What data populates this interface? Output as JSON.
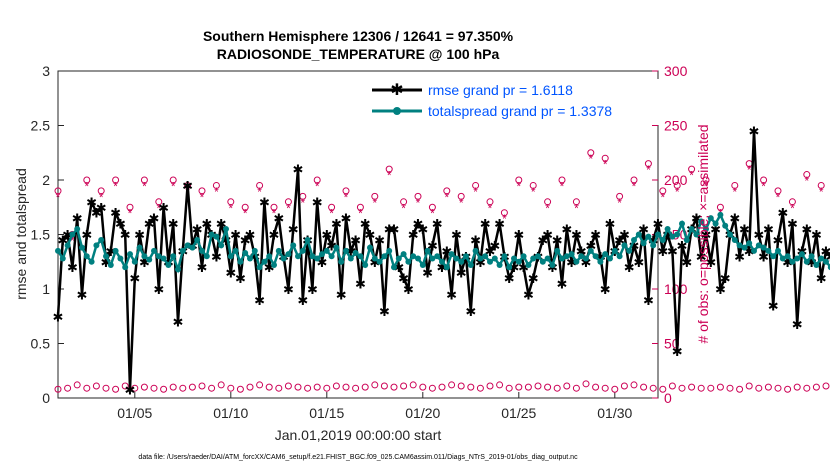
{
  "chart_data": {
    "type": "line",
    "title_line1": "Southern Hemisphere 12306 / 12641 = 97.350%",
    "title_line2": "RADIOSONDE_TEMPERATURE @ 100 hPa",
    "xlabel": "Jan.01,2019 00:00:00 start",
    "ylabel_left": "rmse and totalspread",
    "ylabel_right": "# of obs: o=possible; ×=assimilated",
    "footer": "data file: /Users/raeder/DAI/ATM_forcXX/CAM6_setup/f.e21.FHIST_BGC.f09_025.CAM6assim.011/Diags_NTrS_2019-01/obs_diag_output.nc",
    "xlim": [
      1,
      32.25
    ],
    "ylim_left": [
      0,
      3
    ],
    "ylim_right": [
      0,
      300
    ],
    "x_ticks": [
      {
        "x": 5,
        "label": "01/05"
      },
      {
        "x": 10,
        "label": "01/10"
      },
      {
        "x": 15,
        "label": "01/15"
      },
      {
        "x": 20,
        "label": "01/20"
      },
      {
        "x": 25,
        "label": "01/25"
      },
      {
        "x": 30,
        "label": "01/30"
      }
    ],
    "y_ticks_left": [
      "0",
      "0.5",
      "1",
      "1.5",
      "2",
      "2.5",
      "3"
    ],
    "y_ticks_right": [
      "0",
      "50",
      "100",
      "150",
      "200",
      "250",
      "300"
    ],
    "legend": {
      "rmse": "rmse grand pr = 1.6118",
      "spread": "totalspread grand pr = 1.3378"
    },
    "colors": {
      "rmse": "#000000",
      "spread": "#008080",
      "counts": "#cc0055"
    },
    "step": 0.25,
    "x_start": 1.0,
    "series": [
      {
        "name": "rmse",
        "values": [
          0.75,
          1.45,
          1.5,
          1.2,
          1.65,
          0.95,
          1.5,
          1.8,
          1.7,
          1.75,
          1.25,
          1.35,
          1.7,
          1.6,
          1.5,
          0.08,
          1.1,
          1.5,
          1.25,
          1.6,
          1.65,
          1.0,
          1.75,
          1.25,
          1.6,
          0.7,
          1.35,
          1.95,
          1.4,
          1.55,
          1.2,
          1.6,
          1.5,
          1.3,
          1.6,
          1.45,
          1.15,
          1.5,
          1.1,
          1.45,
          1.5,
          1.3,
          0.9,
          1.8,
          1.2,
          1.5,
          1.65,
          1.3,
          1.0,
          1.55,
          2.1,
          0.9,
          1.45,
          1.0,
          1.8,
          1.25,
          1.5,
          1.4,
          1.6,
          0.95,
          1.65,
          1.35,
          1.45,
          1.05,
          1.6,
          1.5,
          1.25,
          1.45,
          0.8,
          1.55,
          1.55,
          1.2,
          1.1,
          1.0,
          1.5,
          1.6,
          1.55,
          1.15,
          1.4,
          1.6,
          1.2,
          1.35,
          0.95,
          1.5,
          1.15,
          1.3,
          0.8,
          1.45,
          1.25,
          1.6,
          1.35,
          1.4,
          1.6,
          1.3,
          1.1,
          1.2,
          1.5,
          1.2,
          0.95,
          1.1,
          1.3,
          1.45,
          1.5,
          1.2,
          1.45,
          1.05,
          1.55,
          1.25,
          1.5,
          1.35,
          1.25,
          1.4,
          1.5,
          1.3,
          1.0,
          1.6,
          1.35,
          1.45,
          1.5,
          1.2,
          1.4,
          1.25,
          1.55,
          0.9,
          1.45,
          1.6,
          1.35,
          1.5,
          1.35,
          0.43,
          1.4,
          1.25,
          1.55,
          1.65,
          1.3,
          1.5,
          1.25,
          1.55,
          1.0,
          1.1,
          1.5,
          1.65,
          1.3,
          1.55,
          1.35,
          2.45,
          1.5,
          1.3,
          1.55,
          0.85,
          1.45,
          1.7,
          1.25,
          1.6,
          0.68,
          1.35,
          1.55,
          1.25,
          1.5,
          1.1,
          1.35,
          1.3,
          1.55,
          0.9,
          1.45,
          1.15,
          1.4,
          0.85,
          1.5,
          1.1,
          1.35,
          1.4,
          0.95,
          1.25,
          1.45,
          1.5,
          1.6,
          1.58,
          1.65,
          1.8
        ]
      },
      {
        "name": "totalspread",
        "values": [
          1.35,
          1.28,
          1.4,
          1.5,
          1.55,
          1.38,
          1.3,
          1.25,
          1.4,
          1.45,
          1.3,
          1.22,
          1.35,
          1.28,
          1.2,
          1.32,
          1.25,
          1.38,
          1.3,
          1.27,
          1.35,
          1.3,
          1.28,
          1.22,
          1.3,
          1.18,
          1.35,
          1.4,
          1.38,
          1.45,
          1.35,
          1.3,
          1.5,
          1.48,
          1.4,
          1.55,
          1.3,
          1.35,
          1.25,
          1.33,
          1.28,
          1.35,
          1.2,
          1.25,
          1.3,
          1.22,
          1.35,
          1.28,
          1.32,
          1.4,
          1.3,
          1.35,
          1.45,
          1.3,
          1.28,
          1.32,
          1.35,
          1.3,
          1.38,
          1.25,
          1.35,
          1.28,
          1.33,
          1.3,
          1.22,
          1.38,
          1.28,
          1.25,
          1.3,
          1.35,
          1.2,
          1.28,
          1.32,
          1.25,
          1.3,
          1.28,
          1.22,
          1.35,
          1.28,
          1.3,
          1.25,
          1.2,
          1.32,
          1.28,
          1.25,
          1.3,
          1.22,
          1.35,
          1.28,
          1.3,
          1.25,
          1.28,
          1.22,
          1.3,
          1.2,
          1.28,
          1.25,
          1.3,
          1.22,
          1.28,
          1.3,
          1.25,
          1.28,
          1.22,
          1.35,
          1.28,
          1.3,
          1.32,
          1.25,
          1.3,
          1.28,
          1.35,
          1.3,
          1.25,
          1.32,
          1.28,
          1.35,
          1.3,
          1.4,
          1.35,
          1.45,
          1.5,
          1.42,
          1.48,
          1.4,
          1.5,
          1.45,
          1.55,
          1.48,
          1.5,
          1.6,
          1.45,
          1.55,
          1.5,
          1.62,
          1.55,
          1.65,
          1.6,
          1.68,
          1.58,
          1.5,
          1.45,
          1.4,
          1.38,
          1.42,
          1.35,
          1.4,
          1.38,
          1.35,
          1.3,
          1.35,
          1.28,
          1.3,
          1.25,
          1.28,
          1.32,
          1.25,
          1.3,
          1.22,
          1.28,
          1.25,
          1.2,
          1.28,
          1.22,
          1.25,
          1.2,
          1.28,
          1.15,
          1.25,
          1.22,
          1.2,
          1.1,
          1.25,
          1.28,
          1.25,
          1.2
        ]
      },
      {
        "name": "possible",
        "values": [
          190,
          185,
          160,
          150,
          165,
          160,
          200,
          180,
          185,
          190,
          175,
          180,
          200,
          190,
          205,
          175,
          190,
          195,
          200,
          170,
          165,
          180,
          190,
          180,
          200,
          175,
          185,
          195,
          215,
          200,
          190,
          175,
          190,
          195,
          210,
          170,
          180,
          185,
          195,
          175,
          180,
          200,
          195,
          210,
          185,
          175,
          180,
          210,
          180,
          190,
          205,
          185,
          175,
          195,
          200,
          180,
          190,
          175,
          185,
          195,
          190,
          200,
          185,
          175,
          180,
          205,
          185,
          190,
          215,
          210,
          185,
          195,
          180,
          190,
          175,
          185,
          190,
          205,
          175,
          195,
          180,
          190,
          185,
          195,
          185,
          175,
          170,
          195,
          185,
          175,
          180,
          200,
          190,
          170,
          175,
          185,
          200,
          180,
          190,
          195,
          210,
          175,
          180,
          185,
          190,
          200,
          175,
          190,
          180,
          185,
          195,
          225,
          200,
          215,
          220,
          175,
          195,
          185,
          180,
          210,
          200,
          185,
          195,
          215,
          205,
          200,
          190,
          240,
          185,
          195,
          200,
          215,
          210,
          190,
          180,
          200,
          210,
          195,
          175,
          185,
          200,
          195,
          190,
          180,
          215,
          185,
          195,
          200,
          175,
          205,
          190,
          185,
          200,
          180,
          195,
          185,
          205,
          175,
          210,
          195,
          185,
          215,
          190,
          195,
          180,
          200,
          185,
          190,
          250,
          210,
          200,
          185,
          195,
          215,
          195,
          190
        ]
      },
      {
        "name": "assimilated",
        "values": [
          185,
          180,
          155,
          145,
          160,
          155,
          195,
          175,
          180,
          185,
          170,
          175,
          195,
          185,
          200,
          170,
          185,
          190,
          195,
          165,
          160,
          175,
          185,
          175,
          195,
          170,
          180,
          190,
          210,
          195,
          185,
          170,
          185,
          190,
          205,
          165,
          175,
          180,
          190,
          170,
          175,
          195,
          190,
          205,
          180,
          170,
          175,
          205,
          175,
          185,
          200,
          180,
          170,
          190,
          195,
          175,
          185,
          170,
          180,
          190,
          185,
          195,
          180,
          170,
          175,
          200,
          180,
          185,
          210,
          205,
          180,
          190,
          175,
          185,
          170,
          180,
          185,
          200,
          170,
          190,
          175,
          185,
          180,
          190,
          180,
          170,
          165,
          190,
          180,
          170,
          175,
          195,
          185,
          165,
          170,
          180,
          195,
          175,
          185,
          190,
          205,
          170,
          175,
          180,
          185,
          195,
          170,
          185,
          175,
          180,
          190,
          220,
          195,
          210,
          215,
          170,
          190,
          180,
          175,
          205,
          195,
          180,
          190,
          210,
          200,
          195,
          185,
          235,
          180,
          190,
          195,
          210,
          205,
          185,
          175,
          195,
          205,
          190,
          170,
          180,
          195,
          190,
          185,
          175,
          210,
          180,
          190,
          195,
          170,
          200,
          185,
          180,
          195,
          175,
          190,
          180,
          200,
          170,
          205,
          190,
          180,
          210,
          185,
          190,
          175,
          195,
          180,
          185,
          245,
          205,
          195,
          180,
          190,
          210,
          190,
          185
        ]
      },
      {
        "name": "rejected_possible",
        "values": [
          8,
          10,
          9,
          11,
          12,
          10,
          9,
          10,
          11,
          13,
          9,
          10,
          8,
          9,
          11,
          10,
          9,
          12,
          10,
          11,
          9,
          10,
          8,
          9,
          10,
          11,
          9,
          12,
          10,
          9,
          11,
          10,
          9,
          10,
          12,
          11,
          9,
          10,
          8,
          9,
          10,
          11,
          12,
          9,
          10,
          13,
          9,
          10,
          11,
          9,
          10,
          8,
          9,
          11,
          10,
          12,
          9,
          10,
          11,
          9,
          10,
          8,
          9,
          11,
          10,
          9,
          12,
          10,
          11,
          9,
          10,
          9,
          11,
          10,
          12,
          9,
          10,
          8,
          9,
          11,
          10,
          9,
          12,
          10,
          11,
          9,
          10,
          8,
          9,
          10,
          11,
          9,
          12,
          10,
          9,
          11,
          10,
          9,
          10,
          12,
          11,
          9,
          10,
          8,
          9,
          10,
          11,
          12,
          9,
          10,
          13,
          9,
          10,
          11,
          9,
          10,
          8,
          9,
          11,
          10,
          12,
          9,
          10,
          11,
          9,
          10,
          8,
          9,
          11,
          10,
          9,
          12,
          10,
          11,
          9,
          10,
          9,
          11,
          10,
          12,
          9,
          10,
          8,
          9,
          11,
          10,
          9,
          12,
          10,
          11,
          9,
          10,
          8,
          9,
          10,
          11,
          9,
          12,
          10,
          9,
          11,
          10,
          9,
          10,
          12,
          11,
          14,
          10,
          8,
          9,
          10,
          11,
          12,
          9,
          10,
          8
        ]
      }
    ]
  }
}
